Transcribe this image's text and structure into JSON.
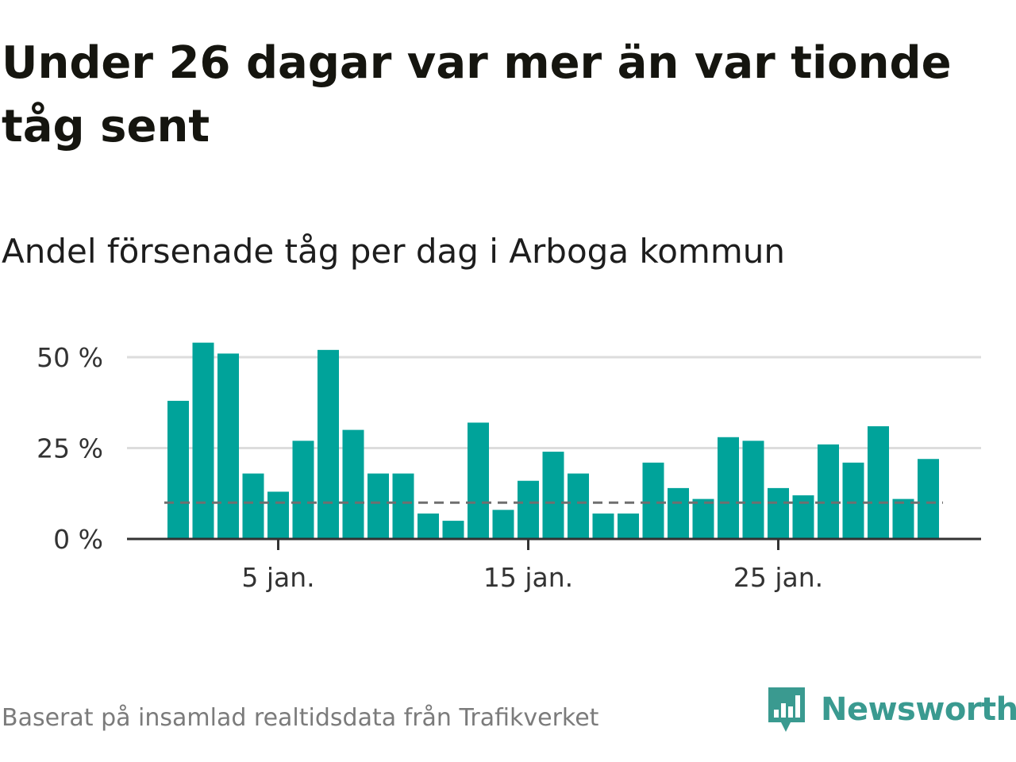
{
  "title": "Under 26 dagar var mer än var tionde tåg sent",
  "subtitle": "Andel försenade tåg per dag i Arboga kommun",
  "footer": {
    "source": "Baserat på insamlad realtidsdata från Trafikverket",
    "brand": "Newsworthy"
  },
  "colors": {
    "bar": "#00a39a",
    "reference_line": "#6f6f6f",
    "grid": "#dddddd",
    "axis": "#333333",
    "brand": "#3a9a90"
  },
  "chart_data": {
    "type": "bar",
    "x": [
      1,
      2,
      3,
      4,
      5,
      6,
      7,
      8,
      9,
      10,
      11,
      12,
      13,
      14,
      15,
      16,
      17,
      18,
      19,
      20,
      21,
      22,
      23,
      24,
      25,
      26,
      27,
      28,
      29,
      30,
      31
    ],
    "values": [
      38,
      54,
      51,
      18,
      13,
      27,
      52,
      30,
      18,
      18,
      7,
      5,
      32,
      8,
      16,
      24,
      18,
      7,
      7,
      21,
      14,
      11,
      28,
      27,
      14,
      12,
      26,
      21,
      31,
      11,
      22
    ],
    "unit": "%",
    "xticks": [
      5,
      15,
      25
    ],
    "xtick_labels": [
      "5 jan.",
      "15 jan.",
      "25 jan."
    ],
    "yticks": [
      0,
      25,
      50
    ],
    "ytick_labels": [
      "0 %",
      "25 %",
      "50 %"
    ],
    "ylim": [
      0,
      55
    ],
    "reference_line": {
      "value": 10,
      "style": "dashed"
    },
    "grid": true,
    "legend": "none"
  }
}
